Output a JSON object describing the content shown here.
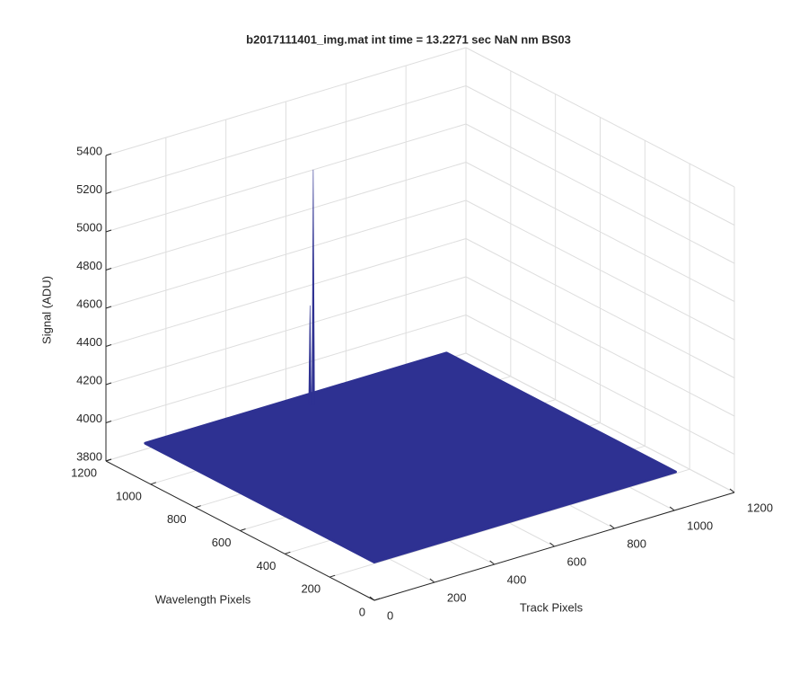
{
  "chart_data": {
    "type": "surface3d",
    "title": "b2017111401_img.mat int time = 13.2271 sec  NaN nm BS03",
    "xlabel": "Track Pixels",
    "ylabel": "Wavelength Pixels",
    "zlabel": "Signal (ADU)",
    "xlim": [
      0,
      1200
    ],
    "xticks": [
      0,
      200,
      400,
      600,
      800,
      1000,
      1200
    ],
    "ylim": [
      0,
      1200
    ],
    "yticks": [
      0,
      200,
      400,
      600,
      800,
      1000,
      1200
    ],
    "zlim": [
      3800,
      5400
    ],
    "zticks": [
      3800,
      4000,
      4200,
      4400,
      4600,
      4800,
      5000,
      5200,
      5400
    ],
    "grid": true,
    "surface": {
      "x": [
        0,
        1004
      ],
      "y": [
        0,
        1024
      ],
      "z": 4000,
      "color": "#2e3192"
    },
    "spikes": [
      {
        "x": 512,
        "y": 960,
        "z": 5230,
        "color": "#2e3192"
      },
      {
        "x": 505,
        "y": 965,
        "z": 4520,
        "color": "#2e3192"
      }
    ]
  }
}
